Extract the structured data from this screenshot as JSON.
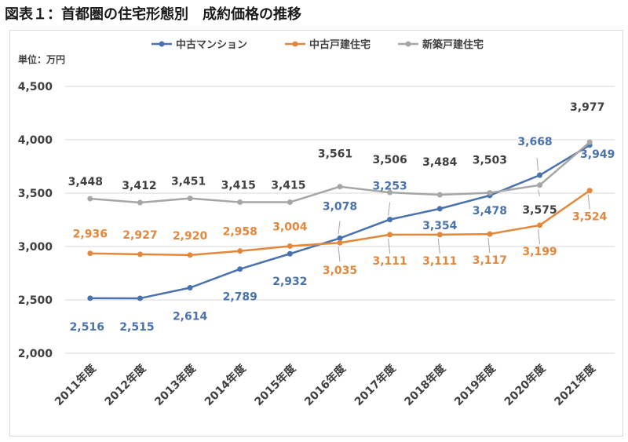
{
  "figure_title": "図表１：首都圏の住宅形態別　成約価格の推移",
  "unit_label": "単位：万円",
  "chart_data": {
    "type": "line",
    "x": [
      "2011年度",
      "2012年度",
      "2013年度",
      "2014年度",
      "2015年度",
      "2016年度",
      "2017年度",
      "2018年度",
      "2019年度",
      "2020年度",
      "2021年度"
    ],
    "ylim": [
      2000,
      4500
    ],
    "yticks": [
      2000,
      2500,
      3000,
      3500,
      4000,
      4500
    ],
    "ytick_labels": [
      "2,000",
      "2,500",
      "3,000",
      "3,500",
      "4,000",
      "4,500"
    ],
    "grid": true,
    "legend_position": "top-center",
    "series": [
      {
        "name": "中古マンション",
        "color": "#4a72ae",
        "values": [
          2516,
          2515,
          2614,
          2789,
          2932,
          3078,
          3253,
          3354,
          3478,
          3668,
          3949
        ],
        "labels": [
          "2,516",
          "2,515",
          "2,614",
          "2,789",
          "2,932",
          "3,078",
          "3,253",
          "3,354",
          "3,478",
          "3,668",
          "3,949"
        ]
      },
      {
        "name": "中古戸建住宅",
        "color": "#e5873a",
        "values": [
          2936,
          2927,
          2920,
          2958,
          3004,
          3035,
          3111,
          3111,
          3117,
          3199,
          3524
        ],
        "labels": [
          "2,936",
          "2,927",
          "2,920",
          "2,958",
          "3,004",
          "3,035",
          "3,111",
          "3,111",
          "3,117",
          "3,199",
          "3,524"
        ]
      },
      {
        "name": "新築戸建住宅",
        "color": "#a6a6a6",
        "label_color": "#404040",
        "values": [
          3448,
          3412,
          3451,
          3415,
          3415,
          3561,
          3506,
          3484,
          3503,
          3575,
          3977
        ],
        "labels": [
          "3,448",
          "3,412",
          "3,451",
          "3,415",
          "3,415",
          "3,561",
          "3,506",
          "3,484",
          "3,503",
          "3,575",
          "3,977"
        ]
      }
    ]
  }
}
